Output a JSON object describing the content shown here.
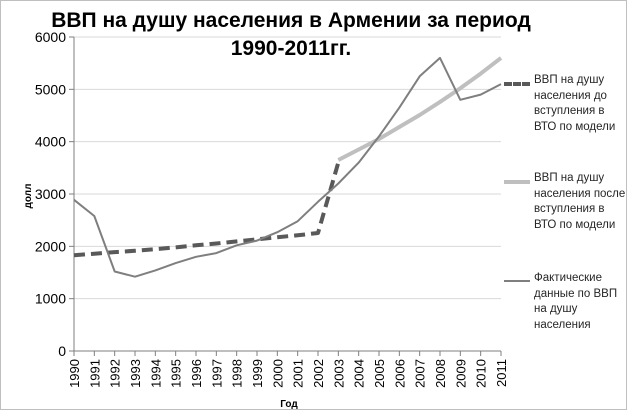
{
  "chart_data": {
    "type": "line",
    "title": "ВВП на душу населения в Армении  за период 1990-2011гг.",
    "xlabel": "Год",
    "ylabel": "долл",
    "ylim": [
      0,
      6000
    ],
    "yticks": [
      0,
      1000,
      2000,
      3000,
      4000,
      5000,
      6000
    ],
    "categories": [
      "1990",
      "1991",
      "1992",
      "1993",
      "1994",
      "1995",
      "1996",
      "1997",
      "1998",
      "1999",
      "2000",
      "2001",
      "2002",
      "2003",
      "2004",
      "2005",
      "2006",
      "2007",
      "2008",
      "2009",
      "2010",
      "2011"
    ],
    "legend_position": "right",
    "series": [
      {
        "name": "ВВП на душу населения до вступления в ВТО по модели",
        "style": "dashed",
        "color": "#595959",
        "values": [
          1830,
          1860,
          1890,
          1915,
          1945,
          1980,
          2020,
          2055,
          2095,
          2135,
          2175,
          2210,
          2255,
          3600,
          null,
          null,
          null,
          null,
          null,
          null,
          null,
          null
        ]
      },
      {
        "name": "ВВП на душу населения после вступления в ВТО по модели",
        "style": "solid-thick",
        "color": "#bfbfbf",
        "values": [
          null,
          null,
          null,
          null,
          null,
          null,
          null,
          null,
          null,
          null,
          null,
          null,
          null,
          3650,
          3850,
          4050,
          4280,
          4510,
          4760,
          5020,
          5300,
          5600
        ]
      },
      {
        "name": "Фактические данные по ВВП на душу населения",
        "style": "solid",
        "color": "#7f7f7f",
        "values": [
          2890,
          2580,
          1520,
          1420,
          1540,
          1680,
          1800,
          1870,
          2020,
          2110,
          2270,
          2480,
          2850,
          3200,
          3600,
          4100,
          4650,
          5250,
          5600,
          4800,
          4900,
          5100
        ]
      }
    ]
  }
}
